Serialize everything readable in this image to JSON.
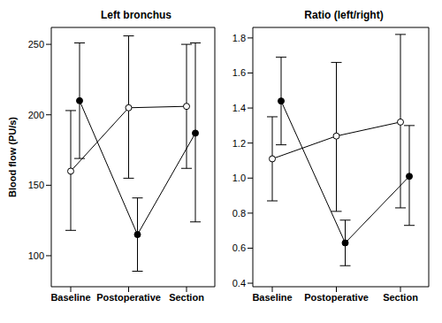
{
  "chart_data": [
    {
      "type": "line",
      "title": "Left bronchus",
      "y_label": "Blood flow (PU/s)",
      "categories": [
        "Baseline",
        "Postoperative",
        "Section"
      ],
      "ylim": [
        78,
        262
      ],
      "yticks": [
        100,
        150,
        200,
        250
      ],
      "series": [
        {
          "color": "#000000",
          "marker": "open circle",
          "values": [
            160,
            205,
            206
          ],
          "error_low": [
            118,
            155,
            162
          ],
          "error_high": [
            203,
            256,
            250
          ]
        },
        {
          "color": "#000000",
          "marker": "filled circle",
          "values": [
            210,
            115,
            187
          ],
          "error_low": [
            169,
            89,
            124
          ],
          "error_high": [
            251,
            141,
            251
          ]
        }
      ]
    },
    {
      "type": "line",
      "title": "Ratio (left/right)",
      "categories": [
        "Baseline",
        "Postoperative",
        "Section"
      ],
      "ylim": [
        0.38,
        1.86
      ],
      "yticks": [
        0.4,
        0.6,
        0.8,
        {
          "value": 1,
          "label": "1.0"
        },
        1.2,
        1.4,
        1.6,
        1.8
      ],
      "series": [
        {
          "color": "#000000",
          "marker": "open circle",
          "values": [
            1.11,
            1.24,
            1.32
          ],
          "error_low": [
            0.87,
            0.81,
            0.83
          ],
          "error_high": [
            1.35,
            1.66,
            1.82
          ]
        },
        {
          "color": "#000000",
          "marker": "filled circle",
          "values": [
            1.44,
            0.63,
            1.01
          ],
          "error_low": [
            1.19,
            0.5,
            0.73
          ],
          "error_high": [
            1.69,
            0.76,
            1.3
          ]
        }
      ]
    }
  ]
}
